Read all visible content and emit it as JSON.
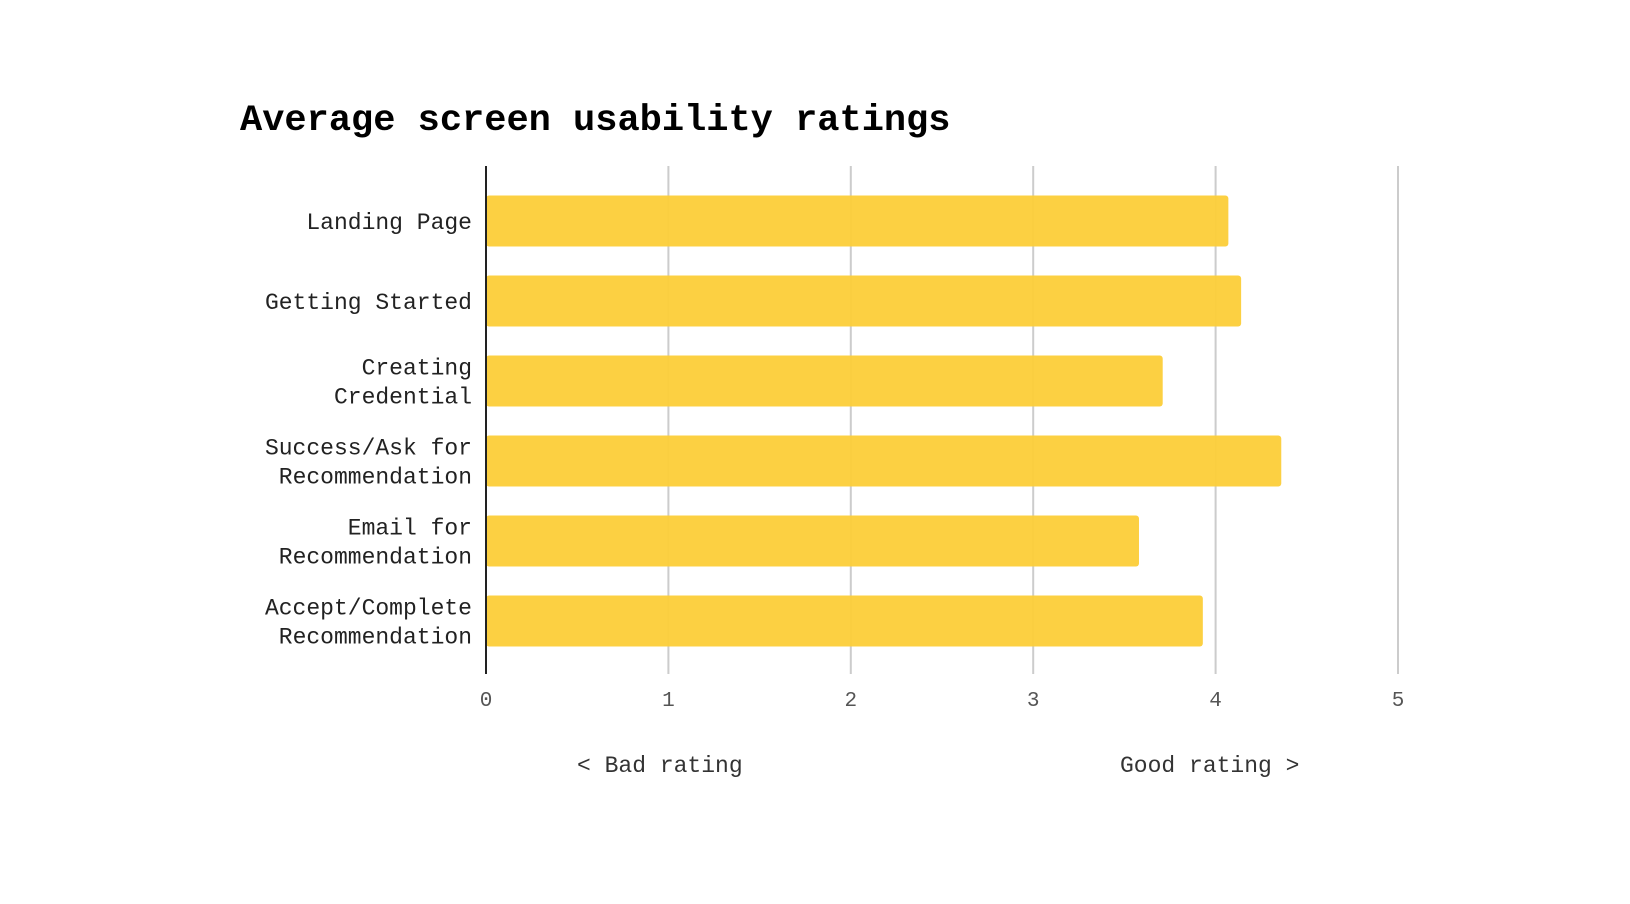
{
  "chart_data": {
    "type": "bar",
    "orientation": "horizontal",
    "title": "Average screen usability ratings",
    "categories": [
      [
        "Landing Page"
      ],
      [
        "Getting Started"
      ],
      [
        "Creating",
        "Credential"
      ],
      [
        "Success/Ask for",
        "Recommendation"
      ],
      [
        "Email for",
        "Recommendation"
      ],
      [
        "Accept/Complete",
        "Recommendation"
      ]
    ],
    "values": [
      4.07,
      4.14,
      3.71,
      4.36,
      3.58,
      3.93
    ],
    "xlim": [
      0,
      5
    ],
    "xticks": [
      0,
      1,
      2,
      3,
      4,
      5
    ],
    "grid": true,
    "bar_color": "#fcce3a",
    "low_note": "< Bad rating",
    "high_note": "Good rating >"
  }
}
